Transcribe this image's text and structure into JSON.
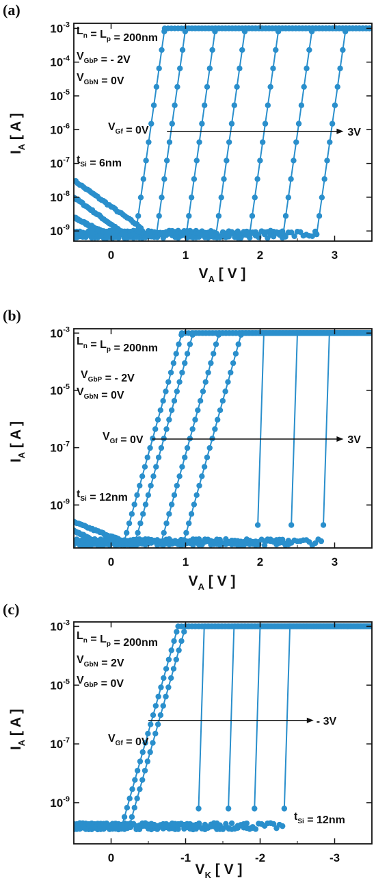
{
  "chart_data": [
    {
      "type": "scatter",
      "panel_label": "(a)",
      "x_scale": "linear",
      "y_scale": "log",
      "xlim": [
        -0.5,
        3.5
      ],
      "ylim_exp": [
        -9.3,
        -2.85
      ],
      "x_ticks": [
        0,
        1,
        2,
        3
      ],
      "x_tick_labels": [
        "0",
        "1",
        "2",
        "3"
      ],
      "y_tick_exps": [
        -3,
        -4,
        -5,
        -6,
        -7,
        -8,
        -9
      ],
      "xlabel": {
        "main": "V",
        "sub": "A",
        "unit": "[ V ]"
      },
      "ylabel": {
        "main": "I",
        "sub": "A",
        "unit": "[ A ]"
      },
      "annotations": [
        {
          "id": "length",
          "text": "L",
          "parts": [
            [
              "L",
              "n"
            ],
            [
              " = L",
              "p"
            ],
            [
              " = 200nm",
              ""
            ]
          ]
        },
        {
          "id": "vgbp",
          "parts": [
            [
              "V",
              "GbP"
            ],
            [
              " = - 2V",
              ""
            ]
          ]
        },
        {
          "id": "vgbn",
          "parts": [
            [
              "V",
              "GbN"
            ],
            [
              " =  0V",
              ""
            ]
          ]
        },
        {
          "id": "vgf",
          "parts": [
            [
              "V",
              "Gf"
            ],
            [
              " = 0V",
              ""
            ]
          ]
        },
        {
          "id": "tsi",
          "parts": [
            [
              "t",
              "Si"
            ],
            [
              " = 6nm",
              ""
            ]
          ]
        }
      ],
      "arrow_end_label": "3V",
      "arrow_y_exp": -6.05,
      "arrow_x": [
        0.75,
        3.1
      ],
      "floor_exp": -9.1,
      "on_exp": -3,
      "series": [
        {
          "v_on": 0.72,
          "slope": 15.6
        },
        {
          "v_on": 1.0,
          "slope": 15.6
        },
        {
          "v_on": 1.4,
          "slope": 15.6
        },
        {
          "v_on": 1.8,
          "slope": 15.6
        },
        {
          "v_on": 2.25,
          "slope": 15.6
        },
        {
          "v_on": 2.7,
          "slope": 15.6
        },
        {
          "v_on": 3.15,
          "slope": 15.6
        }
      ],
      "leakage": [
        {
          "x0": -0.5,
          "e0": -7.5,
          "x1": 0.4,
          "e1": -8.9
        },
        {
          "x0": -0.5,
          "e0": -8.0,
          "x1": 0.15,
          "e1": -9.05
        },
        {
          "x0": -0.5,
          "e0": -8.6,
          "x1": -0.05,
          "e1": -9.1
        }
      ]
    },
    {
      "type": "scatter",
      "panel_label": "(b)",
      "x_scale": "linear",
      "y_scale": "log",
      "xlim": [
        -0.5,
        3.5
      ],
      "ylim_exp": [
        -10.5,
        -2.85
      ],
      "x_ticks": [
        0,
        1,
        2,
        3
      ],
      "x_tick_labels": [
        "0",
        "1",
        "2",
        "3"
      ],
      "y_tick_exps": [
        -3,
        -5,
        -7,
        -9
      ],
      "xlabel": {
        "main": "V",
        "sub": "A",
        "unit": "[ V ]"
      },
      "ylabel": {
        "main": "I",
        "sub": "A",
        "unit": "[ A ]"
      },
      "annotations": [
        {
          "id": "length",
          "parts": [
            [
              "L",
              "n"
            ],
            [
              " = L",
              "p"
            ],
            [
              " = 200nm",
              ""
            ]
          ]
        },
        {
          "id": "vgbp",
          "parts": [
            [
              "V",
              "GbP"
            ],
            [
              " = - 2V",
              ""
            ]
          ]
        },
        {
          "id": "vgbn",
          "parts": [
            [
              "V",
              "GbN"
            ],
            [
              " =  0V",
              ""
            ]
          ]
        },
        {
          "id": "vgf",
          "parts": [
            [
              "V",
              "Gf"
            ],
            [
              " = 0V",
              ""
            ]
          ]
        },
        {
          "id": "tsi",
          "parts": [
            [
              "t",
              "Si"
            ],
            [
              " = 12nm",
              ""
            ]
          ]
        }
      ],
      "arrow_end_label": "3V",
      "arrow_y_exp": -6.7,
      "arrow_x": [
        0.55,
        3.1
      ],
      "floor_exp": -10.3,
      "on_exp": -3,
      "series": [
        {
          "v_on": 0.95,
          "slope": 9.4
        },
        {
          "v_on": 1.1,
          "slope": 9.4
        },
        {
          "v_on": 1.45,
          "slope": 9.4
        },
        {
          "v_on": 1.75,
          "slope": 9.4
        },
        {
          "v_on": 2.05,
          "slope": 90
        },
        {
          "v_on": 2.5,
          "slope": 90
        },
        {
          "v_on": 2.93,
          "slope": 90
        }
      ],
      "leakage": [
        {
          "x0": -0.5,
          "e0": -9.6,
          "x1": 0.2,
          "e1": -10.3
        },
        {
          "x0": -0.5,
          "e0": -9.9,
          "x1": -0.1,
          "e1": -10.4
        }
      ]
    },
    {
      "type": "scatter",
      "panel_label": "(c)",
      "x_scale": "linear",
      "y_scale": "log",
      "xlim": [
        0.5,
        -3.5
      ],
      "ylim_exp": [
        -10.4,
        -2.85
      ],
      "x_ticks": [
        0,
        -1,
        -2,
        -3
      ],
      "x_tick_labels": [
        "0",
        "-1",
        "-2",
        "-3"
      ],
      "y_tick_exps": [
        -3,
        -5,
        -7,
        -9
      ],
      "xlabel": {
        "main": "V",
        "sub": "K",
        "unit": "[ V ]"
      },
      "ylabel": {
        "main": "I",
        "sub": "A",
        "unit": "[ A ]"
      },
      "annotations": [
        {
          "id": "length",
          "parts": [
            [
              "L",
              "n"
            ],
            [
              " = L",
              "p"
            ],
            [
              " = 200nm",
              ""
            ]
          ]
        },
        {
          "id": "vgbn",
          "parts": [
            [
              "V",
              "GbN"
            ],
            [
              " = 2V",
              ""
            ]
          ]
        },
        {
          "id": "vgbp",
          "parts": [
            [
              "V",
              "GbP"
            ],
            [
              " = 0V",
              ""
            ]
          ]
        },
        {
          "id": "vgf",
          "parts": [
            [
              "V",
              "Gf"
            ],
            [
              " = 0V",
              ""
            ]
          ]
        },
        {
          "id": "tsi",
          "parts": [
            [
              "t",
              "Si"
            ],
            [
              " = 12nm",
              ""
            ]
          ]
        }
      ],
      "arrow_end_label": "- 3V",
      "arrow_y_exp": -6.2,
      "arrow_x": [
        -0.5,
        -2.7
      ],
      "floor_exp": -9.8,
      "on_exp": -3,
      "series": [
        {
          "v_on": -0.9,
          "slope": 9.0
        },
        {
          "v_on": -1.0,
          "slope": 9.0
        },
        {
          "v_on": -1.25,
          "slope": 90
        },
        {
          "v_on": -1.65,
          "slope": 90
        },
        {
          "v_on": -2.0,
          "slope": 90
        },
        {
          "v_on": -2.4,
          "slope": 90
        }
      ],
      "leakage": []
    }
  ],
  "colors": {
    "marker": "#2a8fcc",
    "line": "#2a8fcc",
    "axis": "#111111"
  }
}
